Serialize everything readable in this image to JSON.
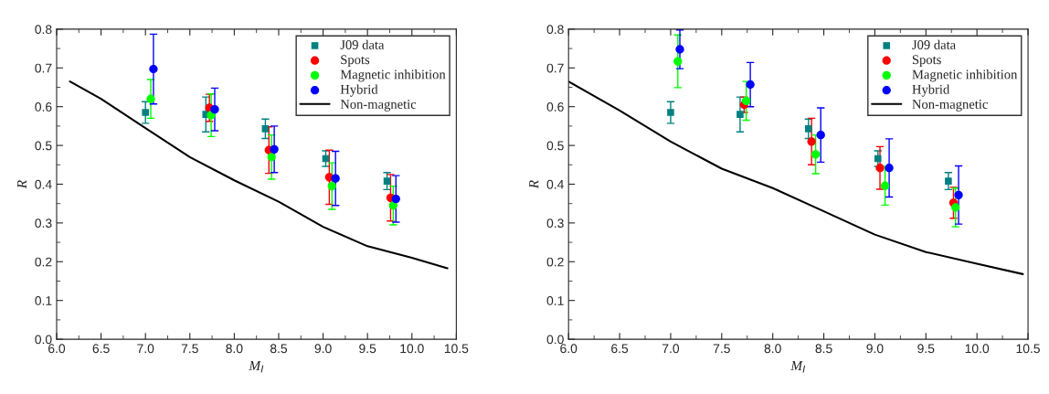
{
  "chart_data": [
    {
      "type": "scatter",
      "xlabel": "M$_{I}$",
      "ylabel": "R",
      "xlim": [
        6.0,
        10.5
      ],
      "ylim": [
        0.0,
        0.8
      ],
      "xticks": [
        {
          "value": 6.0,
          "label": "6.0"
        },
        6.5,
        {
          "value": 7.0,
          "label": "7.0"
        },
        7.5,
        {
          "value": 8.0,
          "label": "8.0"
        },
        8.5,
        {
          "value": 9.0,
          "label": "9.0"
        },
        9.5,
        {
          "value": 10.0,
          "label": "10.0"
        },
        10.5
      ],
      "yticks": [
        {
          "value": 0.0,
          "label": "0.0"
        },
        0.1,
        0.2,
        0.3,
        0.4,
        0.5,
        0.6,
        0.7,
        0.8
      ],
      "legend": "top right",
      "grid": false,
      "series": [
        {
          "name": "J09 data",
          "type": "scatter",
          "marker": "square",
          "color": "#008080",
          "x": [
            7.0,
            7.68,
            8.35,
            9.03,
            9.72
          ],
          "values": [
            0.585,
            0.58,
            0.543,
            0.466,
            0.408
          ],
          "errors": [
            0.028,
            0.045,
            0.025,
            0.02,
            0.022
          ]
        },
        {
          "name": "Spots",
          "type": "scatter",
          "marker": "circle",
          "color": "#ff0000",
          "x": [
            7.72,
            8.39,
            9.07,
            9.76
          ],
          "values": [
            0.597,
            0.488,
            0.418,
            0.365
          ],
          "errors": [
            0.035,
            0.06,
            0.07,
            0.06
          ]
        },
        {
          "name": "Magnetic inhibition",
          "type": "scatter",
          "marker": "circle",
          "color": "#00ff00",
          "x": [
            7.06,
            7.74,
            8.42,
            9.1,
            9.79
          ],
          "values": [
            0.62,
            0.578,
            0.47,
            0.395,
            0.345
          ],
          "errors": [
            0.05,
            0.055,
            0.057,
            0.06,
            0.05
          ]
        },
        {
          "name": "Hybrid",
          "type": "scatter",
          "marker": "circle",
          "color": "#0000ff",
          "x": [
            7.09,
            7.78,
            8.45,
            9.14,
            9.82
          ],
          "values": [
            0.697,
            0.593,
            0.49,
            0.415,
            0.362
          ],
          "errors": [
            0.09,
            0.055,
            0.06,
            0.07,
            0.06
          ]
        },
        {
          "name": "Non-magnetic",
          "type": "line",
          "marker": "none",
          "line_style": "solid",
          "color": "#000000",
          "x": [
            6.15,
            6.5,
            7.0,
            7.5,
            8.0,
            8.5,
            9.0,
            9.5,
            10.0,
            10.4
          ],
          "values": [
            0.665,
            0.62,
            0.545,
            0.47,
            0.41,
            0.355,
            0.29,
            0.24,
            0.21,
            0.183
          ]
        }
      ]
    },
    {
      "type": "scatter",
      "xlabel": "M$_{I}$",
      "ylabel": "R",
      "xlim": [
        6.0,
        10.5
      ],
      "ylim": [
        0.0,
        0.8
      ],
      "xticks": [
        {
          "value": 6.0,
          "label": "6.0"
        },
        6.5,
        {
          "value": 7.0,
          "label": "7.0"
        },
        7.5,
        {
          "value": 8.0,
          "label": "8.0"
        },
        8.5,
        {
          "value": 9.0,
          "label": "9.0"
        },
        9.5,
        {
          "value": 10.0,
          "label": "10.0"
        },
        10.5
      ],
      "yticks": [
        {
          "value": 0.0,
          "label": "0.0"
        },
        0.1,
        0.2,
        0.3,
        0.4,
        0.5,
        0.6,
        0.7,
        0.8
      ],
      "legend": "top right",
      "grid": false,
      "series": [
        {
          "name": "J09 data",
          "type": "scatter",
          "marker": "square",
          "color": "#008080",
          "x": [
            7.0,
            7.68,
            8.35,
            9.03,
            9.72
          ],
          "values": [
            0.585,
            0.58,
            0.543,
            0.466,
            0.408
          ],
          "errors": [
            0.028,
            0.045,
            0.025,
            0.02,
            0.022
          ]
        },
        {
          "name": "Spots",
          "type": "scatter",
          "marker": "circle",
          "color": "#ff0000",
          "x": [
            7.72,
            8.38,
            9.05,
            9.77
          ],
          "values": [
            0.605,
            0.51,
            0.442,
            0.352
          ],
          "errors": [
            0.02,
            0.06,
            0.055,
            0.04
          ]
        },
        {
          "name": "Magnetic inhibition",
          "type": "scatter",
          "marker": "circle",
          "color": "#00ff00",
          "x": [
            7.07,
            7.74,
            8.42,
            9.1,
            9.79
          ],
          "values": [
            0.717,
            0.615,
            0.477,
            0.396,
            0.34
          ],
          "errors": [
            0.068,
            0.05,
            0.05,
            0.05,
            0.05
          ]
        },
        {
          "name": "Hybrid",
          "type": "scatter",
          "marker": "circle",
          "color": "#0000ff",
          "x": [
            7.09,
            7.78,
            8.47,
            9.14,
            9.82
          ],
          "values": [
            0.748,
            0.657,
            0.527,
            0.442,
            0.372
          ],
          "errors": [
            0.05,
            0.057,
            0.07,
            0.075,
            0.075
          ]
        },
        {
          "name": "Non-magnetic",
          "type": "line",
          "marker": "none",
          "line_style": "solid",
          "color": "#000000",
          "x": [
            6.0,
            6.5,
            7.0,
            7.5,
            8.0,
            8.5,
            9.0,
            9.5,
            10.0,
            10.45
          ],
          "values": [
            0.665,
            0.59,
            0.51,
            0.44,
            0.39,
            0.33,
            0.27,
            0.225,
            0.195,
            0.168
          ]
        }
      ]
    }
  ]
}
